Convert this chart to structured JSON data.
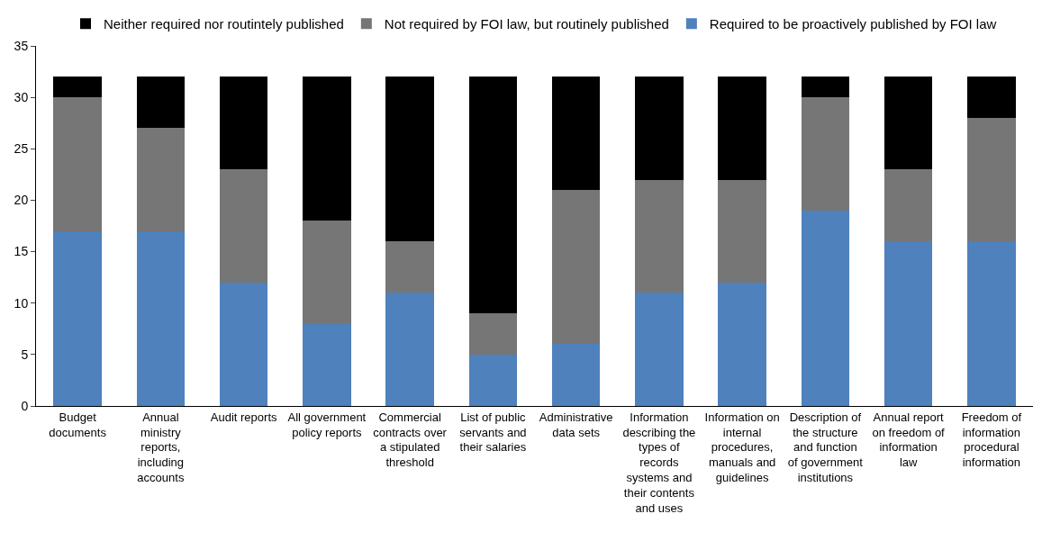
{
  "chart_data": {
    "type": "bar",
    "stacked": true,
    "categories": [
      "Budget documents",
      "Annual ministry reports, including accounts",
      "Audit reports",
      "All government policy reports",
      "Commercial contracts over a stipulated threshold",
      "List of public servants and their salaries",
      "Administrative data sets",
      "Information describing the types of records systems and their contents and uses",
      "Information on internal procedures, manuals and guidelines",
      "Description of the structure and function of government institutions",
      "Annual report on freedom of information law",
      "Freedom of information procedural information"
    ],
    "series": [
      {
        "name": "Required to be proactively published by FOI law",
        "color": "#4f81bd",
        "values": [
          17,
          17,
          12,
          8,
          11,
          5,
          6,
          11,
          12,
          19,
          16,
          16
        ]
      },
      {
        "name": "Not required by FOI law, but routinely published",
        "color": "#767676",
        "values": [
          13,
          10,
          11,
          10,
          5,
          4,
          15,
          11,
          10,
          11,
          7,
          12
        ]
      },
      {
        "name": "Neither required nor routintely published",
        "color": "#000000",
        "values": [
          2,
          5,
          9,
          14,
          16,
          23,
          11,
          10,
          10,
          2,
          9,
          4
        ]
      }
    ],
    "ylim": [
      0,
      35
    ],
    "yticks": [
      0,
      5,
      10,
      15,
      20,
      25,
      30,
      35
    ],
    "grid": false,
    "legend": "top"
  }
}
